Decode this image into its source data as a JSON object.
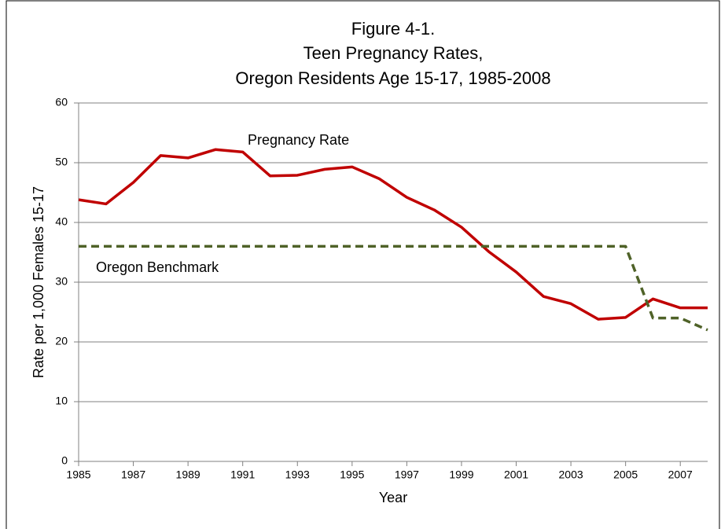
{
  "chart_data": {
    "type": "line",
    "title": [
      "Figure 4-1.",
      "Teen Pregnancy Rates,",
      "Oregon Residents Age 15-17, 1985-2008"
    ],
    "x_label": "Year",
    "y_label": "Rate per 1,000 Females 15-17",
    "x": [
      1985,
      1986,
      1987,
      1988,
      1989,
      1990,
      1991,
      1992,
      1993,
      1994,
      1995,
      1996,
      1997,
      1998,
      1999,
      2000,
      2001,
      2002,
      2003,
      2004,
      2005,
      2006,
      2007,
      2008
    ],
    "series": [
      {
        "name": "Pregnancy Rate",
        "color": "#c00000",
        "dash": false,
        "values": [
          43.8,
          43.1,
          46.7,
          51.2,
          50.8,
          52.2,
          51.8,
          47.8,
          47.9,
          48.9,
          49.3,
          47.3,
          44.2,
          42.1,
          39.2,
          35.1,
          31.7,
          27.6,
          26.4,
          23.8,
          24.1,
          27.2,
          25.7,
          25.7
        ]
      },
      {
        "name": "Oregon Benchmark",
        "color": "#4f6228",
        "dash": true,
        "values": [
          36,
          36,
          36,
          36,
          36,
          36,
          36,
          36,
          36,
          36,
          36,
          36,
          36,
          36,
          36,
          36,
          36,
          36,
          36,
          36,
          36,
          24,
          24,
          22
        ]
      }
    ],
    "xlim": [
      1985,
      2008
    ],
    "xticks": [
      1985,
      1987,
      1989,
      1991,
      1993,
      1995,
      1997,
      1999,
      2001,
      2003,
      2005,
      2007
    ],
    "ylim": [
      0,
      60
    ],
    "yticks": [
      0,
      10,
      20,
      30,
      40,
      50,
      60
    ],
    "grid": true
  }
}
